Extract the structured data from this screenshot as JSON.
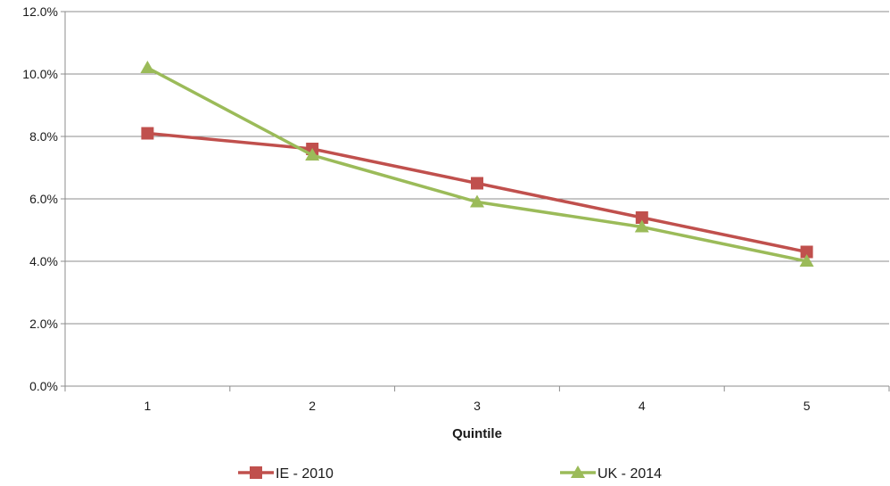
{
  "chart_data": {
    "type": "line",
    "title": "",
    "xlabel": "Quintile",
    "ylabel": "",
    "categories": [
      "1",
      "2",
      "3",
      "4",
      "5"
    ],
    "ylim": [
      0,
      12
    ],
    "y_ticks": [
      {
        "value": 0,
        "label": "0.0%"
      },
      {
        "value": 2,
        "label": "2.0%"
      },
      {
        "value": 4,
        "label": "4.0%"
      },
      {
        "value": 6,
        "label": "6.0%"
      },
      {
        "value": 8,
        "label": "8.0%"
      },
      {
        "value": 10,
        "label": "10.0%"
      },
      {
        "value": 12,
        "label": "12.0%"
      }
    ],
    "grid": "horizontal",
    "legend_position": "bottom",
    "series": [
      {
        "name": "IE - 2010",
        "marker": "square",
        "color": "#c0504d",
        "values": [
          8.1,
          7.6,
          6.5,
          5.4,
          4.3
        ]
      },
      {
        "name": "UK - 2014",
        "marker": "triangle",
        "color": "#9bbb59",
        "values": [
          10.2,
          7.4,
          5.9,
          5.1,
          4.0
        ]
      }
    ]
  }
}
